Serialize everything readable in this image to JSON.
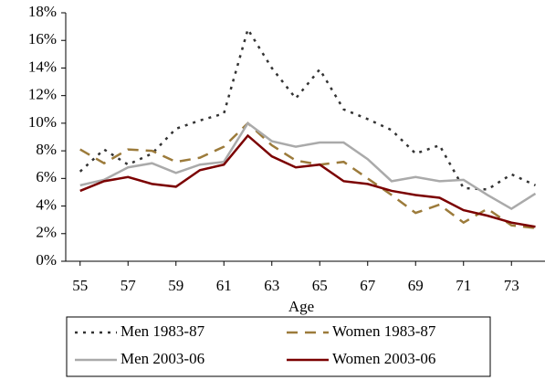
{
  "chart_data": {
    "type": "line",
    "x_label": "Age",
    "x": [
      55,
      56,
      57,
      58,
      59,
      60,
      61,
      62,
      63,
      64,
      65,
      66,
      67,
      68,
      69,
      70,
      71,
      72,
      73,
      74
    ],
    "xlim": [
      54.4,
      74.4
    ],
    "xticks": [
      55,
      57,
      59,
      61,
      63,
      65,
      67,
      69,
      71,
      73
    ],
    "ylim": [
      0,
      18
    ],
    "yticks": [
      {
        "value": 0,
        "label": "0%"
      },
      {
        "value": 2,
        "label": "2%"
      },
      {
        "value": 4,
        "label": "4%"
      },
      {
        "value": 6,
        "label": "6%"
      },
      {
        "value": 8,
        "label": "8%"
      },
      {
        "value": 10,
        "label": "10%"
      },
      {
        "value": 12,
        "label": "12%"
      },
      {
        "value": 14,
        "label": "14%"
      },
      {
        "value": 16,
        "label": "16%"
      },
      {
        "value": 18,
        "label": "18%"
      }
    ],
    "grid": false,
    "legend": "bottom",
    "series": [
      {
        "name": "Men 1983-87",
        "color": "#333333",
        "dash": "3,6",
        "values": [
          6.5,
          8.1,
          7.0,
          7.8,
          9.6,
          10.2,
          10.7,
          16.8,
          14.0,
          11.8,
          13.9,
          11.0,
          10.3,
          9.5,
          7.8,
          8.4,
          5.3,
          5.2,
          6.3,
          5.5
        ]
      },
      {
        "name": "Women 1983-87",
        "color": "#9c7b3b",
        "dash": "12,8",
        "values": [
          8.1,
          7.1,
          8.1,
          8.0,
          7.2,
          7.5,
          8.3,
          10.0,
          8.4,
          7.3,
          7.0,
          7.2,
          6.0,
          4.8,
          3.5,
          4.1,
          2.8,
          3.8,
          2.6,
          2.4
        ]
      },
      {
        "name": "Men 2003-06",
        "color": "#aaaaaa",
        "dash": "",
        "values": [
          5.5,
          5.9,
          6.8,
          7.1,
          6.4,
          7.0,
          7.2,
          10.0,
          8.7,
          8.3,
          8.6,
          8.6,
          7.4,
          5.8,
          6.1,
          5.8,
          5.9,
          4.8,
          3.8,
          4.9
        ]
      },
      {
        "name": "Women 2003-06",
        "color": "#7b0000",
        "dash": "",
        "values": [
          5.1,
          5.8,
          6.1,
          5.6,
          5.4,
          6.6,
          7.0,
          9.1,
          7.6,
          6.8,
          7.0,
          5.8,
          5.6,
          5.1,
          4.8,
          4.6,
          3.7,
          3.3,
          2.8,
          2.5
        ]
      }
    ]
  }
}
